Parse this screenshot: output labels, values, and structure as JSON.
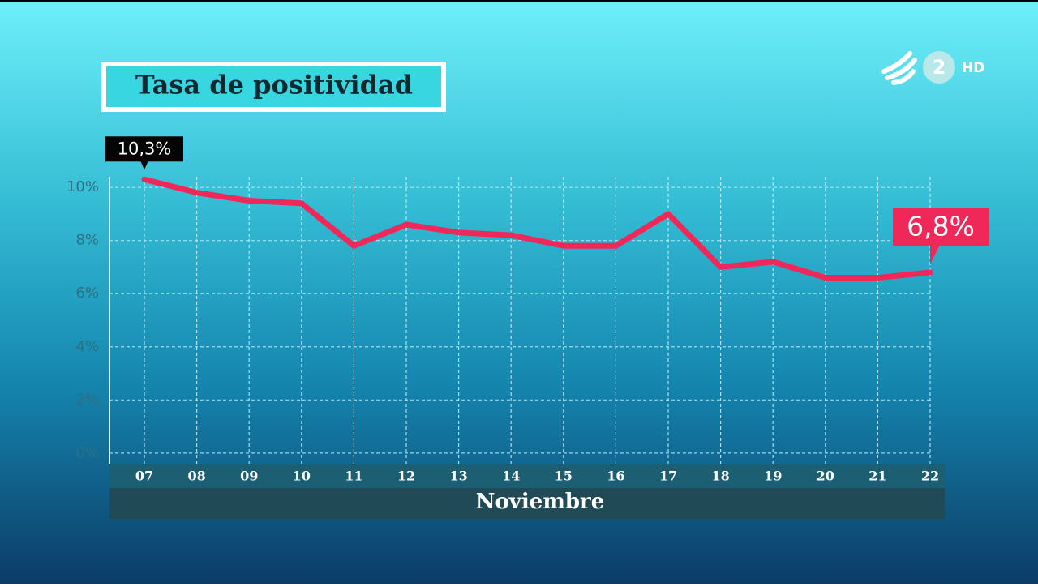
{
  "chart_data": {
    "type": "line",
    "title": "Tasa de positividad",
    "categories": [
      "07",
      "08",
      "09",
      "10",
      "11",
      "12",
      "13",
      "14",
      "15",
      "16",
      "17",
      "18",
      "19",
      "20",
      "21",
      "22"
    ],
    "series": [
      {
        "color": "#f0285a",
        "values": [
          10.3,
          9.8,
          9.5,
          9.4,
          7.8,
          8.6,
          8.3,
          8.2,
          7.8,
          7.8,
          9.0,
          7.0,
          7.2,
          6.6,
          6.6,
          6.8
        ],
        "value_labels": [
          "10,3%",
          null,
          null,
          null,
          null,
          null,
          null,
          null,
          null,
          null,
          null,
          null,
          null,
          null,
          null,
          "6,8%"
        ]
      }
    ],
    "x_label": "Noviembre",
    "ylim": [
      -0.4,
      10.4
    ],
    "yticks": [
      {
        "value": 0,
        "label": "0%"
      },
      {
        "value": 2,
        "label": "2%"
      },
      {
        "value": 4,
        "label": "4%"
      },
      {
        "value": 6,
        "label": "6%"
      },
      {
        "value": 8,
        "label": "8%"
      },
      {
        "value": 10,
        "label": "10%"
      }
    ],
    "grid": true
  },
  "channel": {
    "number": "2",
    "quality": "HD"
  }
}
